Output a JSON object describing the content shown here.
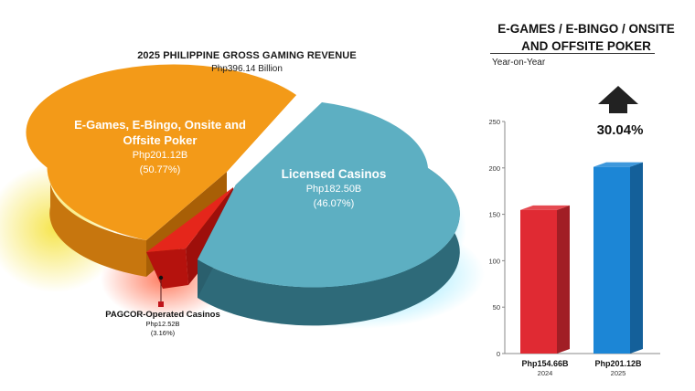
{
  "chart_data": [
    {
      "type": "pie",
      "title": "2025 PHILIPPINE GROSS GAMING REVENUE",
      "subtitle": "Php396.14 Billion",
      "slices": [
        {
          "name": "E-Games, E-Bingo, Onsite and Offsite Poker",
          "amount_label": "Php201.12B",
          "percent_label": "(50.77%)",
          "value": 50.77,
          "color": "#F39A18"
        },
        {
          "name": "Licensed Casinos",
          "amount_label": "Php182.50B",
          "percent_label": "(46.07%)",
          "value": 46.07,
          "color": "#5DAFC2"
        },
        {
          "name": "PAGCOR-Operated Casinos",
          "amount_label": "Php12.52B",
          "percent_label": "(3.16%)",
          "value": 3.16,
          "color": "#E5261B"
        }
      ]
    },
    {
      "type": "bar",
      "title": "E-GAMES / E-BINGO / ONSITE AND OFFSITE POKER",
      "subtitle": "Year-on-Year",
      "categories": [
        "2024",
        "2025"
      ],
      "value_labels": [
        "Php154.66B",
        "Php201.12B"
      ],
      "values": [
        154.66,
        201.12
      ],
      "colors": [
        "#E02A33",
        "#1C86D6"
      ],
      "ylim": [
        0,
        250
      ],
      "yticks": [
        0,
        50,
        100,
        150,
        200,
        250
      ],
      "change_label": "30.04%"
    }
  ]
}
